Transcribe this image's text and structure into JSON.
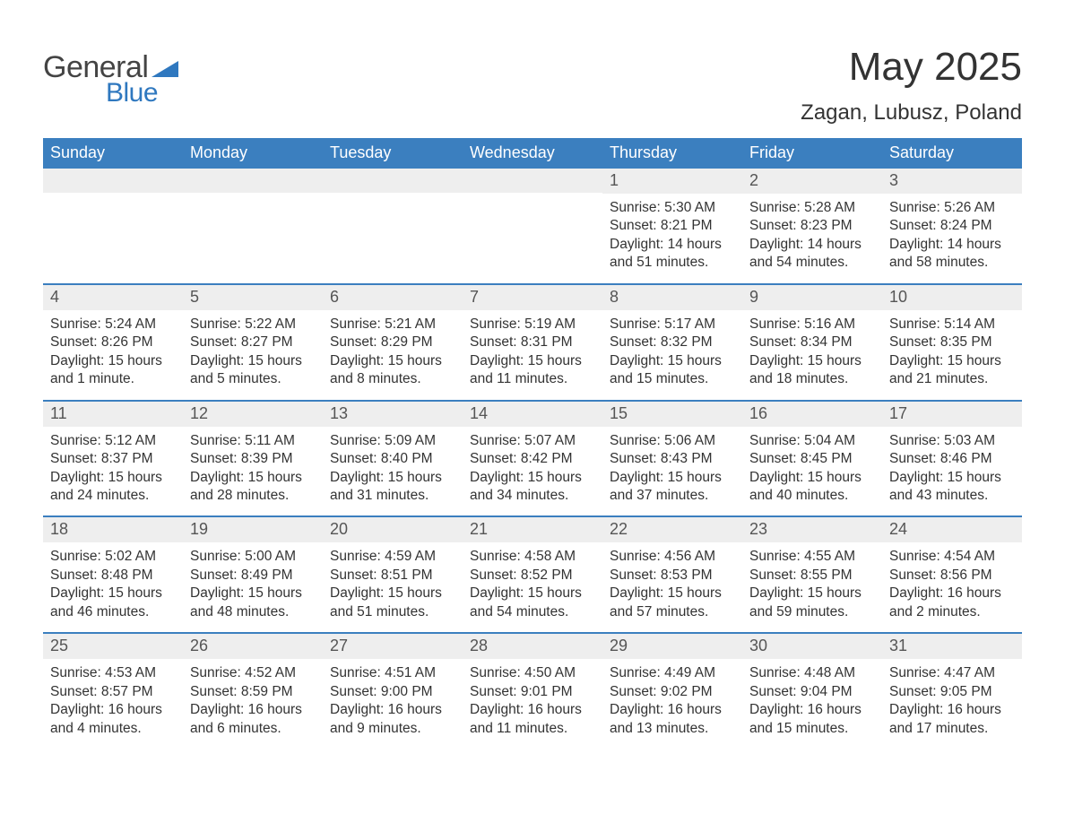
{
  "brand": {
    "general": "General",
    "blue": "Blue",
    "logo_color": "#2f78bf"
  },
  "header": {
    "title": "May 2025",
    "location": "Zagan, Lubusz, Poland"
  },
  "colors": {
    "header_bg": "#3b7fbf",
    "header_text": "#ffffff",
    "daynum_bg": "#eeeeee",
    "week_border": "#3b7fbf",
    "text": "#333333",
    "background": "#ffffff"
  },
  "weekdays": [
    "Sunday",
    "Monday",
    "Tuesday",
    "Wednesday",
    "Thursday",
    "Friday",
    "Saturday"
  ],
  "weeks": [
    [
      null,
      null,
      null,
      null,
      {
        "n": "1",
        "sunrise": "5:30 AM",
        "sunset": "8:21 PM",
        "daylight": "14 hours and 51 minutes."
      },
      {
        "n": "2",
        "sunrise": "5:28 AM",
        "sunset": "8:23 PM",
        "daylight": "14 hours and 54 minutes."
      },
      {
        "n": "3",
        "sunrise": "5:26 AM",
        "sunset": "8:24 PM",
        "daylight": "14 hours and 58 minutes."
      }
    ],
    [
      {
        "n": "4",
        "sunrise": "5:24 AM",
        "sunset": "8:26 PM",
        "daylight": "15 hours and 1 minute."
      },
      {
        "n": "5",
        "sunrise": "5:22 AM",
        "sunset": "8:27 PM",
        "daylight": "15 hours and 5 minutes."
      },
      {
        "n": "6",
        "sunrise": "5:21 AM",
        "sunset": "8:29 PM",
        "daylight": "15 hours and 8 minutes."
      },
      {
        "n": "7",
        "sunrise": "5:19 AM",
        "sunset": "8:31 PM",
        "daylight": "15 hours and 11 minutes."
      },
      {
        "n": "8",
        "sunrise": "5:17 AM",
        "sunset": "8:32 PM",
        "daylight": "15 hours and 15 minutes."
      },
      {
        "n": "9",
        "sunrise": "5:16 AM",
        "sunset": "8:34 PM",
        "daylight": "15 hours and 18 minutes."
      },
      {
        "n": "10",
        "sunrise": "5:14 AM",
        "sunset": "8:35 PM",
        "daylight": "15 hours and 21 minutes."
      }
    ],
    [
      {
        "n": "11",
        "sunrise": "5:12 AM",
        "sunset": "8:37 PM",
        "daylight": "15 hours and 24 minutes."
      },
      {
        "n": "12",
        "sunrise": "5:11 AM",
        "sunset": "8:39 PM",
        "daylight": "15 hours and 28 minutes."
      },
      {
        "n": "13",
        "sunrise": "5:09 AM",
        "sunset": "8:40 PM",
        "daylight": "15 hours and 31 minutes."
      },
      {
        "n": "14",
        "sunrise": "5:07 AM",
        "sunset": "8:42 PM",
        "daylight": "15 hours and 34 minutes."
      },
      {
        "n": "15",
        "sunrise": "5:06 AM",
        "sunset": "8:43 PM",
        "daylight": "15 hours and 37 minutes."
      },
      {
        "n": "16",
        "sunrise": "5:04 AM",
        "sunset": "8:45 PM",
        "daylight": "15 hours and 40 minutes."
      },
      {
        "n": "17",
        "sunrise": "5:03 AM",
        "sunset": "8:46 PM",
        "daylight": "15 hours and 43 minutes."
      }
    ],
    [
      {
        "n": "18",
        "sunrise": "5:02 AM",
        "sunset": "8:48 PM",
        "daylight": "15 hours and 46 minutes."
      },
      {
        "n": "19",
        "sunrise": "5:00 AM",
        "sunset": "8:49 PM",
        "daylight": "15 hours and 48 minutes."
      },
      {
        "n": "20",
        "sunrise": "4:59 AM",
        "sunset": "8:51 PM",
        "daylight": "15 hours and 51 minutes."
      },
      {
        "n": "21",
        "sunrise": "4:58 AM",
        "sunset": "8:52 PM",
        "daylight": "15 hours and 54 minutes."
      },
      {
        "n": "22",
        "sunrise": "4:56 AM",
        "sunset": "8:53 PM",
        "daylight": "15 hours and 57 minutes."
      },
      {
        "n": "23",
        "sunrise": "4:55 AM",
        "sunset": "8:55 PM",
        "daylight": "15 hours and 59 minutes."
      },
      {
        "n": "24",
        "sunrise": "4:54 AM",
        "sunset": "8:56 PM",
        "daylight": "16 hours and 2 minutes."
      }
    ],
    [
      {
        "n": "25",
        "sunrise": "4:53 AM",
        "sunset": "8:57 PM",
        "daylight": "16 hours and 4 minutes."
      },
      {
        "n": "26",
        "sunrise": "4:52 AM",
        "sunset": "8:59 PM",
        "daylight": "16 hours and 6 minutes."
      },
      {
        "n": "27",
        "sunrise": "4:51 AM",
        "sunset": "9:00 PM",
        "daylight": "16 hours and 9 minutes."
      },
      {
        "n": "28",
        "sunrise": "4:50 AM",
        "sunset": "9:01 PM",
        "daylight": "16 hours and 11 minutes."
      },
      {
        "n": "29",
        "sunrise": "4:49 AM",
        "sunset": "9:02 PM",
        "daylight": "16 hours and 13 minutes."
      },
      {
        "n": "30",
        "sunrise": "4:48 AM",
        "sunset": "9:04 PM",
        "daylight": "16 hours and 15 minutes."
      },
      {
        "n": "31",
        "sunrise": "4:47 AM",
        "sunset": "9:05 PM",
        "daylight": "16 hours and 17 minutes."
      }
    ]
  ],
  "labels": {
    "sunrise": "Sunrise: ",
    "sunset": "Sunset: ",
    "daylight": "Daylight: "
  }
}
